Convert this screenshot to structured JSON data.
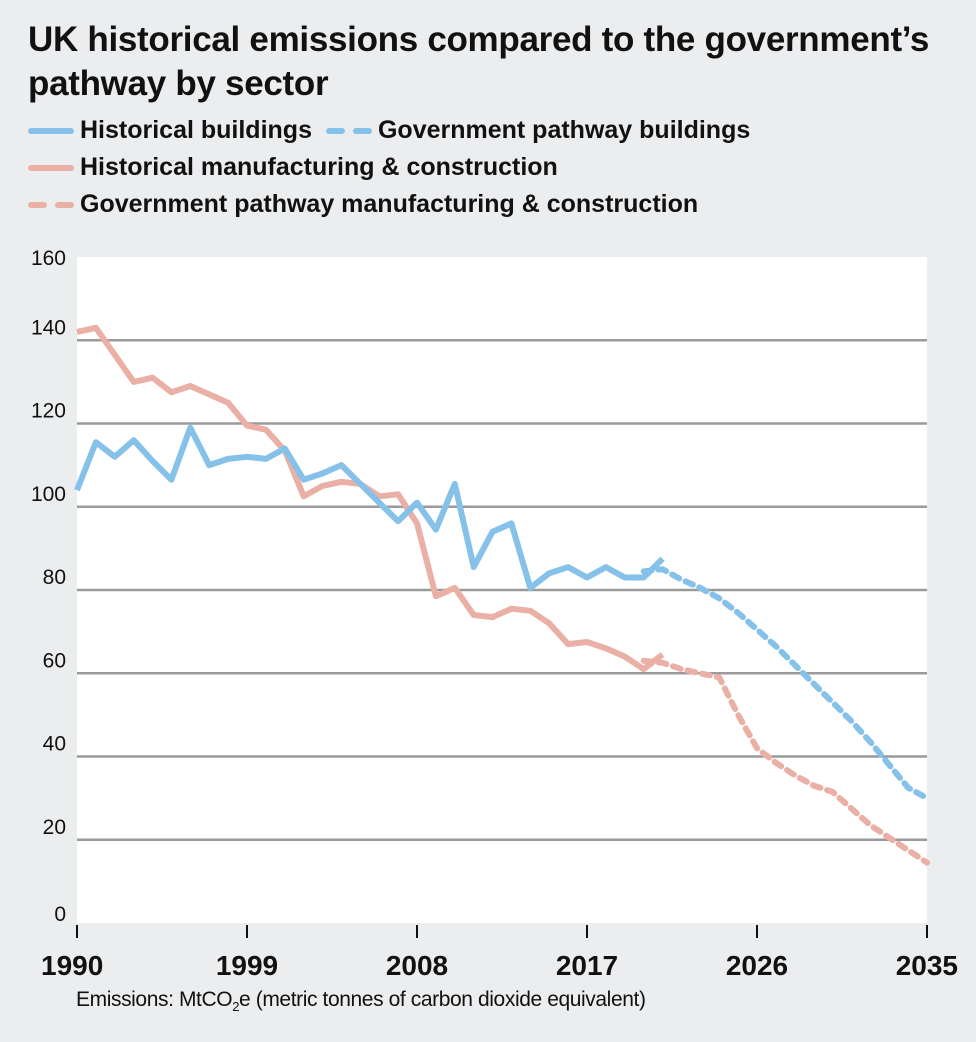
{
  "chart_data": {
    "type": "line",
    "title": "UK historical emissions compared to the government’s pathway by sector",
    "xlabel": "",
    "ylabel": "",
    "xlim": [
      1990,
      2035
    ],
    "ylim": [
      0,
      160
    ],
    "x_ticks": [
      1990,
      1999,
      2008,
      2017,
      2026,
      2035
    ],
    "x_tick_labels": [
      "1990",
      "1999",
      "2008",
      "2017",
      "2026",
      "2035"
    ],
    "y_ticks": [
      0,
      20,
      40,
      60,
      80,
      100,
      120,
      140,
      160
    ],
    "y_tick_labels": [
      "0",
      "20",
      "40",
      "60",
      "80",
      "100",
      "120",
      "140",
      "160"
    ],
    "grid": "horizontal",
    "legend_position": "top-left",
    "footnote_prefix": "Emissions: MtCO",
    "footnote_sub": "2",
    "footnote_suffix": "e (metric tonnes of carbon dioxide equivalent)",
    "series": [
      {
        "name": "Historical buildings",
        "color": "#85c1e9",
        "style": "solid",
        "x": [
          1990,
          1991,
          1992,
          1993,
          1994,
          1995,
          1996,
          1997,
          1998,
          1999,
          2000,
          2001,
          2002,
          2003,
          2004,
          2005,
          2006,
          2007,
          2008,
          2009,
          2010,
          2011,
          2012,
          2013,
          2014,
          2015,
          2016,
          2017,
          2018,
          2019,
          2020,
          2021
        ],
        "values": [
          104,
          115.5,
          112,
          116,
          111,
          106.5,
          119,
          110,
          111.5,
          112,
          111.5,
          114,
          106.5,
          108,
          110,
          105.5,
          101,
          96.5,
          101,
          94.5,
          105.5,
          85.5,
          94,
          96,
          80.5,
          84,
          85.5,
          83,
          85.5,
          83,
          83,
          87.5
        ]
      },
      {
        "name": "Government pathway buildings",
        "color": "#85c1e9",
        "style": "dashed",
        "x": [
          2020,
          2021,
          2022,
          2023,
          2024,
          2025,
          2026,
          2027,
          2028,
          2029,
          2030,
          2031,
          2032,
          2033,
          2034,
          2035
        ],
        "values": [
          84.5,
          85,
          82.5,
          80.5,
          78,
          74.5,
          70.5,
          66.5,
          62,
          57.5,
          53,
          48.5,
          43.5,
          38,
          32.5,
          30
        ]
      },
      {
        "name": "Historical manufacturing & construction",
        "color": "#eab0a6",
        "style": "solid",
        "x": [
          1990,
          1991,
          1992,
          1993,
          1994,
          1995,
          1996,
          1997,
          1998,
          1999,
          2000,
          2001,
          2002,
          2003,
          2004,
          2005,
          2006,
          2007,
          2008,
          2009,
          2010,
          2011,
          2012,
          2013,
          2014,
          2015,
          2016,
          2017,
          2018,
          2019,
          2020,
          2021
        ],
        "values": [
          142,
          143,
          136.5,
          130,
          131,
          127.5,
          129,
          127,
          125,
          119.5,
          118.5,
          113.5,
          102.5,
          105,
          106,
          105.5,
          102.5,
          103,
          96,
          78.5,
          80.5,
          74,
          73.5,
          75.5,
          75,
          72,
          67,
          67.5,
          66,
          64,
          61,
          64.5
        ]
      },
      {
        "name": "Government pathway manufacturing & construction",
        "color": "#eab0a6",
        "style": "dashed",
        "x": [
          2020,
          2021,
          2022,
          2023,
          2024,
          2025,
          2026,
          2027,
          2028,
          2029,
          2030,
          2031,
          2032,
          2033,
          2034,
          2035
        ],
        "values": [
          63,
          62.5,
          61,
          60,
          59,
          50,
          42,
          38.5,
          35.5,
          33,
          31.5,
          27.5,
          23.5,
          20.5,
          17.5,
          14.5
        ]
      }
    ]
  },
  "colors": {
    "background": "#ecedef",
    "plot_background": "#ffffff",
    "gridline": "#9a9a9a",
    "buildings": "#85c1e9",
    "manufacturing": "#eab0a6"
  }
}
